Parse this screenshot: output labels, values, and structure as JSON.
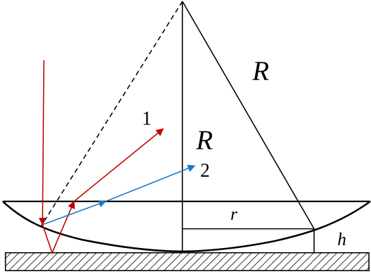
{
  "labels": {
    "radius_big": "R",
    "radius_inner": "R",
    "half_width": "r",
    "height": "h",
    "ray_one": "1",
    "ray_two": "2"
  },
  "colors": {
    "ray_one": "#c00000",
    "ray_two": "#1f77c4",
    "lines": "#000000",
    "hatch": "#000000"
  }
}
